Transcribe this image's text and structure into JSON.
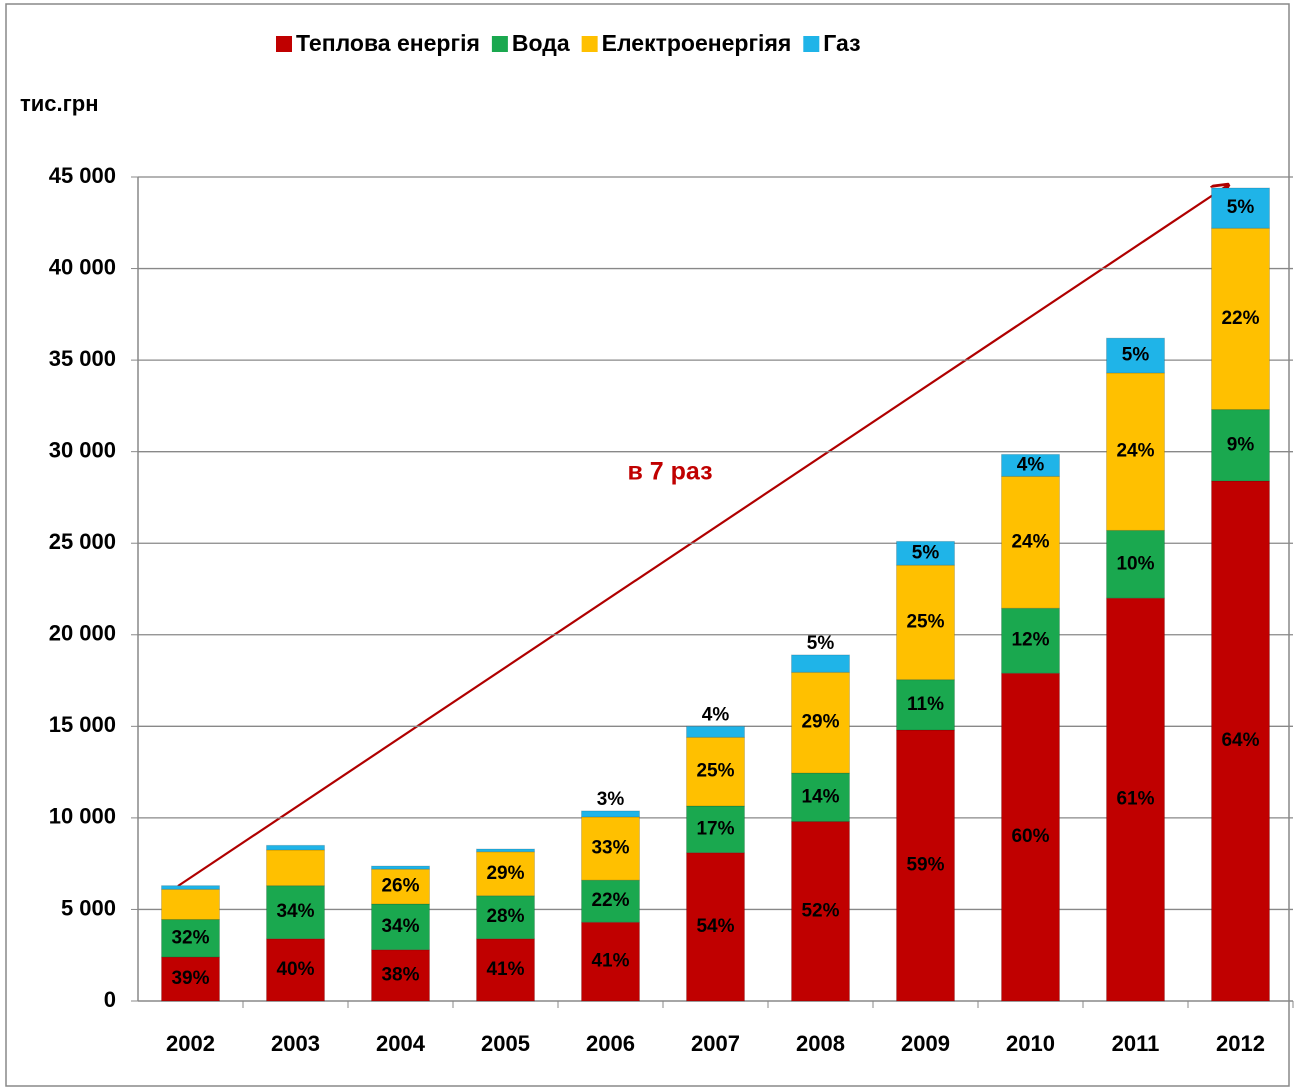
{
  "chart_data": {
    "type": "stacked_bar",
    "y_label": "тис.грн",
    "annotation": "в 7 раз",
    "categories": [
      "2002",
      "2003",
      "2004",
      "2005",
      "2006",
      "2007",
      "2008",
      "2009",
      "2010",
      "2011",
      "2012"
    ],
    "series": [
      {
        "name": "Теплова енергія",
        "color": "#c00000",
        "values": [
          2400,
          3400,
          2800,
          3400,
          4300,
          8100,
          9800,
          14800,
          17900,
          22000,
          28400
        ],
        "labels": [
          "39%",
          "40%",
          "38%",
          "41%",
          "41%",
          "54%",
          "52%",
          "59%",
          "60%",
          "61%",
          "64%"
        ]
      },
      {
        "name": "Вода",
        "color": "#1aa84f",
        "values": [
          2050,
          2900,
          2500,
          2350,
          2300,
          2550,
          2650,
          2750,
          3550,
          3700,
          3900
        ],
        "labels": [
          "32%",
          "34%",
          "34%",
          "28%",
          "22%",
          "17%",
          "14%",
          "11%",
          "12%",
          "10%",
          "9%"
        ]
      },
      {
        "name": "Електроенергіяя",
        "color": "#ffc000",
        "values": [
          1650,
          1950,
          1900,
          2400,
          3450,
          3750,
          5500,
          6250,
          7200,
          8600,
          9900
        ],
        "labels": [
          null,
          null,
          "26%",
          "29%",
          "33%",
          "25%",
          "29%",
          "25%",
          "24%",
          "24%",
          "22%"
        ]
      },
      {
        "name": "Газ",
        "color": "#1fb4e8",
        "values": [
          200,
          250,
          170,
          150,
          330,
          600,
          950,
          1300,
          1200,
          1900,
          2200
        ],
        "labels": [
          null,
          null,
          null,
          null,
          "3%",
          "4%",
          "5%",
          "5%",
          "4%",
          "5%",
          "5%"
        ]
      }
    ],
    "ylim": [
      0,
      45000
    ],
    "yticks": [
      0,
      {
        "value": 5000,
        "label": "5 000"
      },
      {
        "value": 10000,
        "label": "10 000"
      },
      {
        "value": 15000,
        "label": "15 000"
      },
      {
        "value": 20000,
        "label": "20 000"
      },
      {
        "value": 25000,
        "label": "25 000"
      },
      {
        "value": 30000,
        "label": "30 000"
      },
      {
        "value": 35000,
        "label": "35 000"
      },
      {
        "value": 40000,
        "label": "40 000"
      },
      {
        "value": 45000,
        "label": "45 000"
      }
    ],
    "grid": true,
    "legend": "top"
  }
}
